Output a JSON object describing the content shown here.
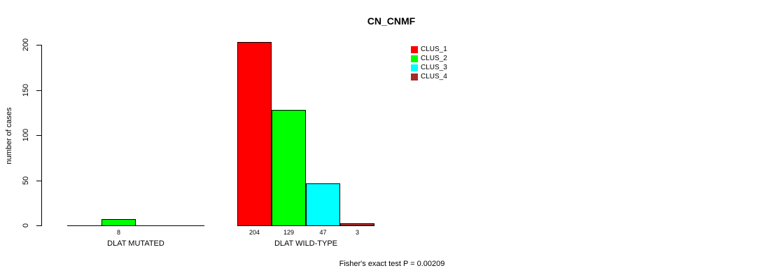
{
  "chart_data": {
    "type": "bar",
    "title": "CN_CNMF",
    "ylabel": "number of cases",
    "xlabel": "",
    "categories": [
      "DLAT MUTATED",
      "DLAT WILD-TYPE"
    ],
    "series": [
      {
        "name": "CLUS_1",
        "color": "#FF0000",
        "values": [
          0,
          204
        ]
      },
      {
        "name": "CLUS_2",
        "color": "#00FF00",
        "values": [
          8,
          129
        ]
      },
      {
        "name": "CLUS_3",
        "color": "#00FFFF",
        "values": [
          0,
          47
        ]
      },
      {
        "name": "CLUS_4",
        "color": "#A52A2A",
        "values": [
          0,
          3
        ]
      }
    ],
    "yticks": [
      0,
      50,
      100,
      150,
      200
    ],
    "ylim": [
      0,
      200
    ],
    "grid": false,
    "legend_position": "top-right",
    "value_labels_shown_when_positive": true,
    "annotation": "Fisher's exact test P = 0.00209"
  }
}
